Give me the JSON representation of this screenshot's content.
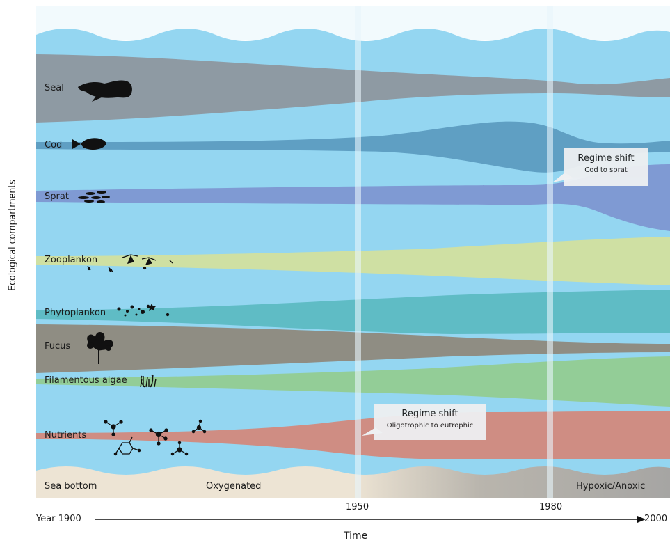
{
  "axis": {
    "y_label": "Ecological compartments",
    "x_label": "Time",
    "start": "Year 1900",
    "end": "2000",
    "ticks": [
      "1950",
      "1980"
    ]
  },
  "compartments": [
    {
      "label": "Seal",
      "color": "#8e9aa3",
      "icon": "seal-icon"
    },
    {
      "label": "Cod",
      "color": "#5f9fc3",
      "icon": "cod-icon"
    },
    {
      "label": "Sprat",
      "color": "#7f9ad3",
      "icon": "sprat-icon"
    },
    {
      "label": "Zooplankon",
      "color": "#cfe0a3",
      "icon": "zooplankton-icon"
    },
    {
      "label": "Phytoplankon",
      "color": "#5fbcc5",
      "icon": "phytoplankton-icon"
    },
    {
      "label": "Fucus",
      "color": "#8f8d83",
      "icon": "fucus-icon"
    },
    {
      "label": "Filamentous algae",
      "color": "#93cd97",
      "icon": "filamentous-algae-icon"
    },
    {
      "label": "Nutrients",
      "color": "#cf8d83",
      "icon": "nutrients-icon"
    }
  ],
  "sea_bottom": {
    "label": "Sea bottom",
    "start_state": "Oxygenated",
    "end_state": "Hypoxic/Anoxic"
  },
  "callouts": [
    {
      "title": "Regime shift",
      "subtitle": "Cod to sprat"
    },
    {
      "title": "Regime shift",
      "subtitle": "Oligotrophic to eutrophic"
    }
  ],
  "colors": {
    "water": "#94d6f1",
    "sky": "#f2fafd",
    "sediment": "#ede4d4",
    "anoxic": "#a6a5a3",
    "marker": "#e8f5fb"
  }
}
